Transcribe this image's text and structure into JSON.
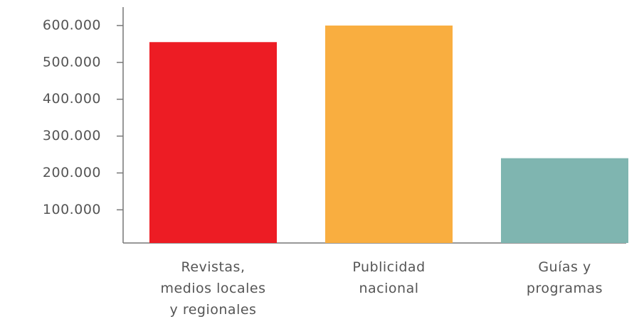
{
  "chart_data": {
    "type": "bar",
    "categories": [
      "Revistas,\nmedios locales\ny regionales",
      "Publicidad\nnacional",
      "Guías y\nprogramas"
    ],
    "values": [
      555000,
      600000,
      240000
    ],
    "colors": [
      "#ed1c24",
      "#f9ae40",
      "#7fb5b0"
    ],
    "ylim": [
      10000,
      650000
    ],
    "yticks": [
      {
        "value": 100000,
        "label": "100.000"
      },
      {
        "value": 200000,
        "label": "200.000"
      },
      {
        "value": 300000,
        "label": "300.000"
      },
      {
        "value": 400000,
        "label": "400.000"
      },
      {
        "value": 500000,
        "label": "500.000"
      },
      {
        "value": 600000,
        "label": "600.000"
      }
    ],
    "grid": false
  }
}
